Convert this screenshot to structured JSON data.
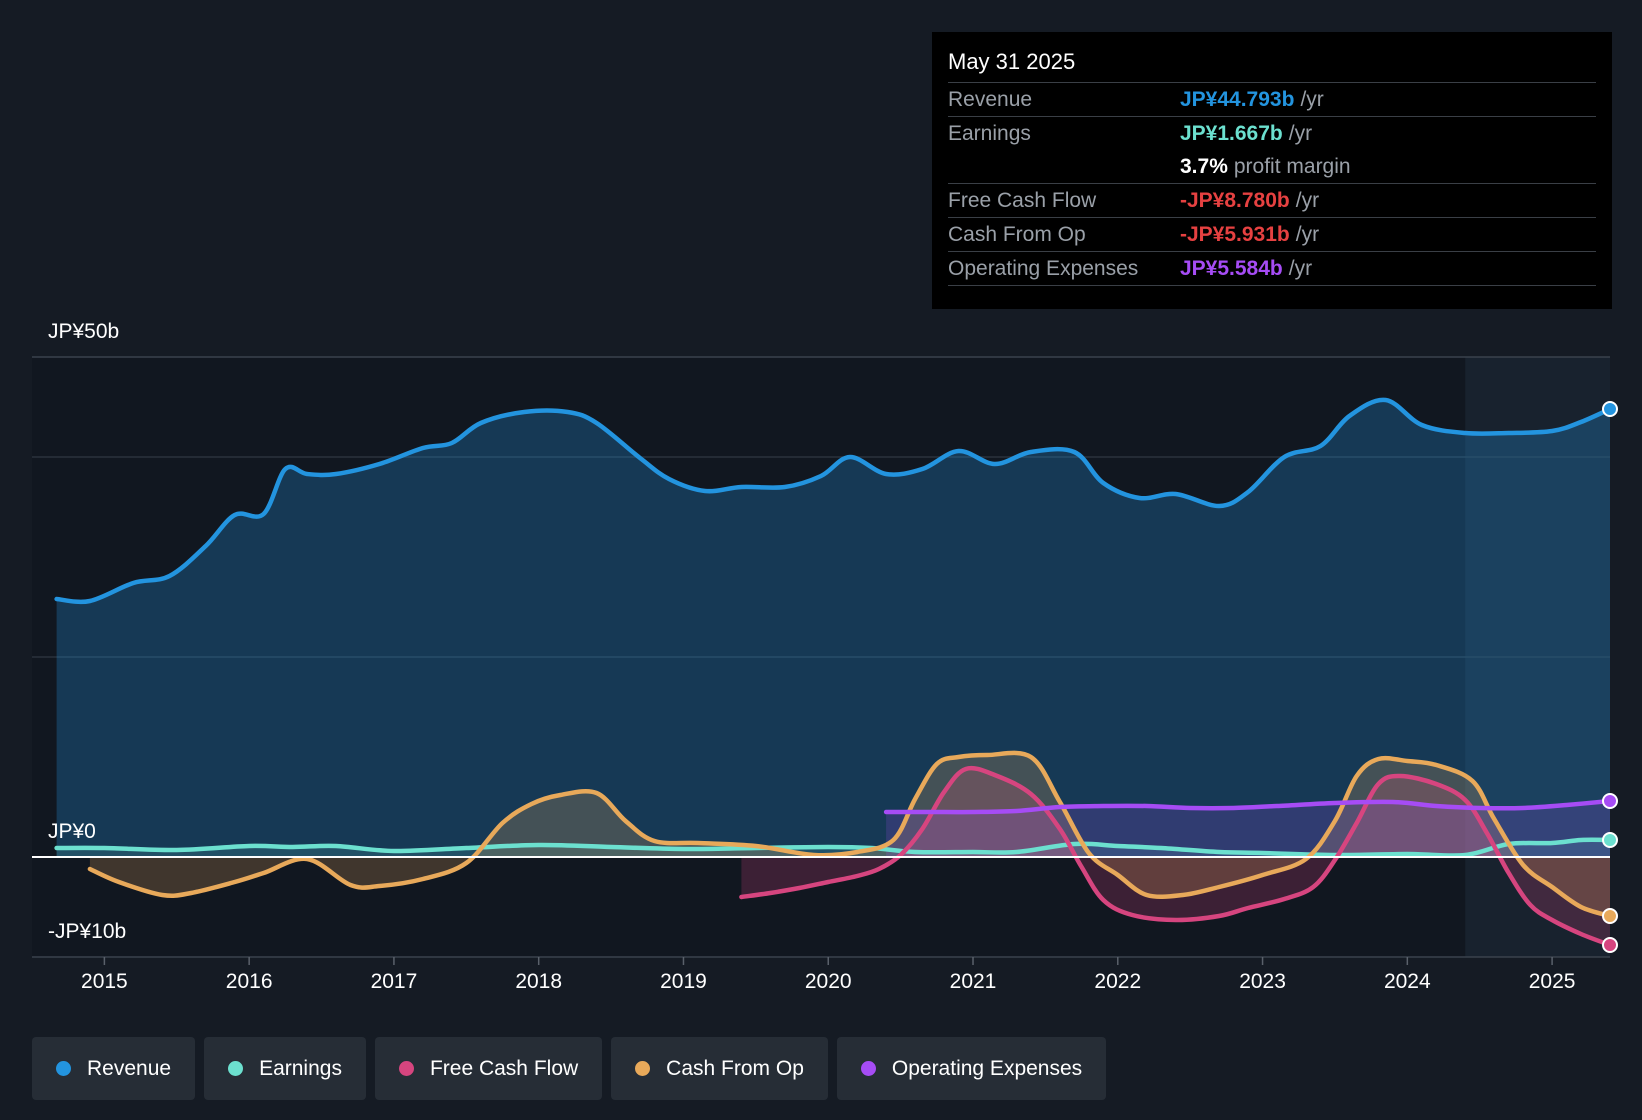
{
  "tooltip": {
    "date": "May 31 2025",
    "rows": [
      {
        "label": "Revenue",
        "value": "JP¥44.793b",
        "unit": "/yr",
        "color": "#2394df"
      },
      {
        "label": "Earnings",
        "value": "JP¥1.667b",
        "unit": "/yr",
        "color": "#6ce0cf"
      },
      {
        "label": "",
        "value": "3.7%",
        "unit": "profit margin",
        "color": "#ffffff"
      },
      {
        "label": "Free Cash Flow",
        "value": "-JP¥8.780b",
        "unit": "/yr",
        "color": "#e64141"
      },
      {
        "label": "Cash From Op",
        "value": "-JP¥5.931b",
        "unit": "/yr",
        "color": "#e64141"
      },
      {
        "label": "Operating Expenses",
        "value": "JP¥5.584b",
        "unit": "/yr",
        "color": "#a64cf5"
      }
    ]
  },
  "y_labels": {
    "top": "JP¥50b",
    "zero": "JP¥0",
    "bottom": "-JP¥10b"
  },
  "legend": [
    {
      "label": "Revenue",
      "color": "#2394df"
    },
    {
      "label": "Earnings",
      "color": "#6ce0cf"
    },
    {
      "label": "Free Cash Flow",
      "color": "#d6457f"
    },
    {
      "label": "Cash From Op",
      "color": "#e8a95a"
    },
    {
      "label": "Operating Expenses",
      "color": "#a64cf5"
    }
  ],
  "chart_data": {
    "type": "line",
    "title": "",
    "xlabel": "",
    "ylabel": "",
    "ylim": [
      -10,
      50
    ],
    "xlim": [
      2014.5,
      2025.4
    ],
    "x_ticks": [
      "2015",
      "2016",
      "2017",
      "2018",
      "2019",
      "2020",
      "2021",
      "2022",
      "2023",
      "2024",
      "2025"
    ],
    "forecast_shading_start": 2024.4,
    "series": [
      {
        "name": "Revenue",
        "color": "#2394df",
        "x": [
          2014.67,
          2014.9,
          2015.2,
          2015.45,
          2015.7,
          2015.9,
          2016.1,
          2016.25,
          2016.4,
          2016.6,
          2016.9,
          2017.2,
          2017.4,
          2017.6,
          2017.9,
          2018.2,
          2018.4,
          2018.7,
          2018.9,
          2019.15,
          2019.4,
          2019.7,
          2019.95,
          2020.15,
          2020.4,
          2020.65,
          2020.9,
          2021.15,
          2021.4,
          2021.7,
          2021.9,
          2022.15,
          2022.4,
          2022.7,
          2022.9,
          2023.15,
          2023.4,
          2023.6,
          2023.85,
          2024.1,
          2024.4,
          2024.7,
          2025.0,
          2025.2,
          2025.4
        ],
        "y": [
          25.8,
          25.6,
          27.4,
          28.1,
          31.1,
          34.2,
          34.3,
          38.8,
          38.3,
          38.3,
          39.3,
          40.9,
          41.4,
          43.4,
          44.5,
          44.5,
          43.4,
          39.9,
          37.8,
          36.6,
          37.0,
          37.0,
          38.1,
          40.0,
          38.3,
          38.8,
          40.6,
          39.3,
          40.5,
          40.5,
          37.4,
          35.9,
          36.3,
          35.1,
          36.5,
          40.0,
          41.1,
          44.1,
          45.7,
          43.2,
          42.4,
          42.4,
          42.6,
          43.5,
          44.8
        ]
      },
      {
        "name": "Earnings",
        "color": "#6ce0cf",
        "x": [
          2014.67,
          2015.0,
          2015.5,
          2016.0,
          2016.3,
          2016.6,
          2017.0,
          2017.5,
          2018.0,
          2018.5,
          2019.0,
          2019.5,
          2020.0,
          2020.3,
          2020.6,
          2021.0,
          2021.3,
          2021.7,
          2022.0,
          2022.3,
          2022.7,
          2023.0,
          2023.5,
          2024.0,
          2024.4,
          2024.7,
          2025.0,
          2025.2,
          2025.4
        ],
        "y": [
          0.9,
          0.9,
          0.7,
          1.1,
          1.0,
          1.1,
          0.6,
          0.9,
          1.2,
          1.0,
          0.8,
          0.9,
          1.0,
          0.9,
          0.5,
          0.5,
          0.5,
          1.3,
          1.1,
          0.9,
          0.5,
          0.4,
          0.2,
          0.3,
          0.2,
          1.3,
          1.4,
          1.7,
          1.7
        ]
      },
      {
        "name": "Free Cash Flow",
        "color": "#d6457f",
        "x": [
          2019.4,
          2019.6,
          2019.8,
          2020.0,
          2020.2,
          2020.35,
          2020.5,
          2020.65,
          2020.8,
          2020.95,
          2021.15,
          2021.4,
          2021.6,
          2021.75,
          2021.9,
          2022.1,
          2022.4,
          2022.7,
          2022.9,
          2023.15,
          2023.35,
          2023.5,
          2023.65,
          2023.8,
          2023.95,
          2024.2,
          2024.4,
          2024.55,
          2024.7,
          2024.85,
          2025.0,
          2025.2,
          2025.4
        ],
        "y": [
          -4.0,
          -3.6,
          -3.1,
          -2.5,
          -1.9,
          -1.2,
          0.2,
          2.8,
          6.5,
          8.8,
          8.2,
          6.3,
          2.8,
          -1.0,
          -4.3,
          -5.8,
          -6.3,
          -5.9,
          -5.1,
          -4.2,
          -3.0,
          -0.3,
          3.4,
          7.3,
          8.1,
          7.3,
          5.7,
          2.4,
          -1.6,
          -4.8,
          -6.3,
          -7.7,
          -8.8
        ]
      },
      {
        "name": "Cash From Op",
        "color": "#e8a95a",
        "x": [
          2014.9,
          2015.1,
          2015.4,
          2015.6,
          2015.9,
          2016.1,
          2016.4,
          2016.7,
          2016.9,
          2017.2,
          2017.5,
          2017.75,
          2017.95,
          2018.15,
          2018.4,
          2018.6,
          2018.8,
          2019.1,
          2019.5,
          2019.9,
          2020.2,
          2020.45,
          2020.6,
          2020.75,
          2020.9,
          2021.1,
          2021.4,
          2021.6,
          2021.8,
          2022.0,
          2022.2,
          2022.45,
          2022.7,
          2023.0,
          2023.3,
          2023.5,
          2023.65,
          2023.8,
          2024.0,
          2024.2,
          2024.45,
          2024.6,
          2024.8,
          2025.0,
          2025.2,
          2025.4
        ],
        "y": [
          -1.2,
          -2.5,
          -3.8,
          -3.6,
          -2.5,
          -1.6,
          -0.2,
          -2.8,
          -2.9,
          -2.2,
          -0.6,
          3.4,
          5.3,
          6.2,
          6.4,
          3.6,
          1.6,
          1.4,
          1.1,
          0.2,
          0.5,
          1.7,
          5.8,
          9.3,
          10.0,
          10.2,
          10.0,
          5.5,
          0.4,
          -1.8,
          -3.8,
          -3.8,
          -3.0,
          -1.8,
          -0.2,
          3.6,
          8.1,
          9.8,
          9.6,
          9.2,
          7.6,
          3.8,
          -0.8,
          -3.0,
          -5.0,
          -5.9
        ]
      },
      {
        "name": "Operating Expenses",
        "color": "#a64cf5",
        "x": [
          2020.4,
          2020.7,
          2021.0,
          2021.3,
          2021.6,
          2021.9,
          2022.2,
          2022.5,
          2022.8,
          2023.1,
          2023.5,
          2023.9,
          2024.2,
          2024.5,
          2024.8,
          2025.1,
          2025.4
        ],
        "y": [
          4.5,
          4.5,
          4.5,
          4.6,
          5.0,
          5.1,
          5.1,
          4.9,
          4.9,
          5.1,
          5.4,
          5.5,
          5.1,
          4.9,
          4.9,
          5.2,
          5.6
        ]
      }
    ]
  }
}
